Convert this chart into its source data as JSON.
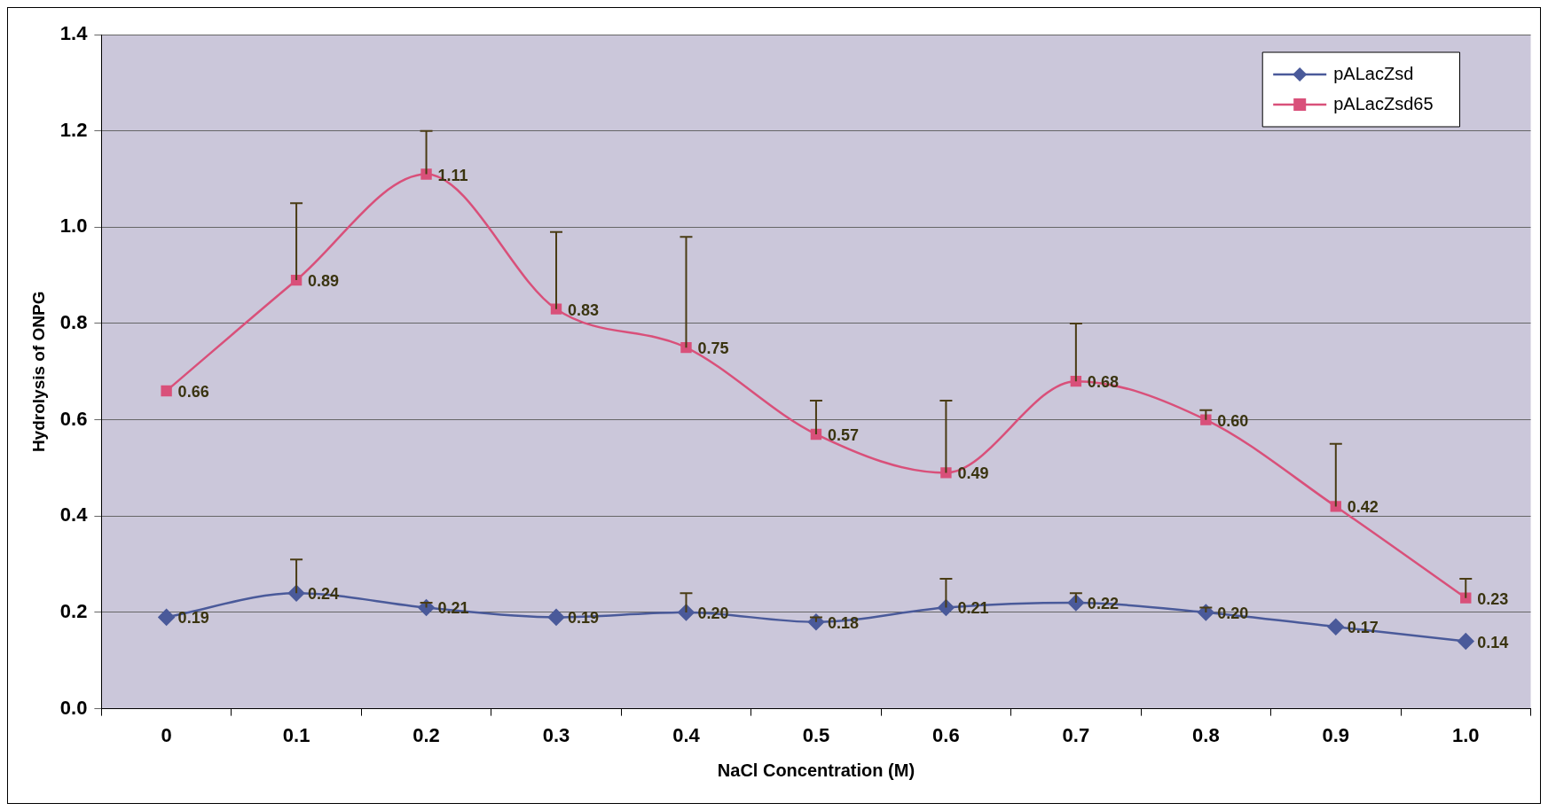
{
  "chart_data": {
    "type": "line",
    "xlabel": "NaCl Concentration (M)",
    "ylabel": "Hydrolysis of ONPG",
    "categories": [
      "0",
      "0.1",
      "0.2",
      "0.3",
      "0.4",
      "0.5",
      "0.6",
      "0.7",
      "0.8",
      "0.9",
      "1.0"
    ],
    "series": [
      {
        "name": "pALacZsd",
        "color": "#4a5a9a",
        "marker": "diamond",
        "values": [
          0.19,
          0.24,
          0.21,
          0.19,
          0.2,
          0.18,
          0.21,
          0.22,
          0.2,
          0.17,
          0.14
        ],
        "value_labels": [
          "0.19",
          "0.24",
          "0.21",
          "0.19",
          "0.20",
          "0.18",
          "0.21",
          "0.22",
          "0.20",
          "0.17",
          "0.14"
        ],
        "errors": [
          null,
          [
            0.24,
            0.31
          ],
          [
            0.21,
            0.22
          ],
          null,
          [
            0.2,
            0.24
          ],
          [
            0.18,
            0.19
          ],
          [
            0.21,
            0.27
          ],
          [
            0.22,
            0.24
          ],
          [
            0.2,
            0.21
          ],
          null,
          null
        ]
      },
      {
        "name": "pALacZsd65",
        "color": "#d9507a",
        "marker": "square",
        "values": [
          0.66,
          0.89,
          1.11,
          0.83,
          0.75,
          0.57,
          0.49,
          0.68,
          0.6,
          0.42,
          0.23
        ],
        "value_labels": [
          "0.66",
          "0.89",
          "1.11",
          "0.83",
          "0.75",
          "0.57",
          "0.49",
          "0.68",
          "0.60",
          "0.42",
          "0.23"
        ],
        "errors": [
          null,
          [
            0.89,
            1.05
          ],
          [
            1.11,
            1.2
          ],
          [
            0.83,
            0.99
          ],
          [
            0.75,
            0.98
          ],
          [
            0.57,
            0.64
          ],
          [
            0.49,
            0.64
          ],
          [
            0.68,
            0.8
          ],
          [
            0.6,
            0.62
          ],
          [
            0.42,
            0.55
          ],
          [
            0.23,
            0.27
          ]
        ]
      }
    ],
    "ylim": [
      0,
      1.4
    ],
    "yticks": [
      {
        "value": 0,
        "label": "0.0"
      },
      {
        "value": 0.2,
        "label": "0.2"
      },
      {
        "value": 0.4,
        "label": "0.4"
      },
      {
        "value": 0.6,
        "label": "0.6"
      },
      {
        "value": 0.8,
        "label": "0.8"
      },
      {
        "value": 1,
        "label": "1.0"
      },
      {
        "value": 1.2,
        "label": "1.2"
      },
      {
        "value": 1.4,
        "label": "1.4"
      }
    ],
    "grid": "y",
    "legend": "top right",
    "line_style": "solid"
  }
}
